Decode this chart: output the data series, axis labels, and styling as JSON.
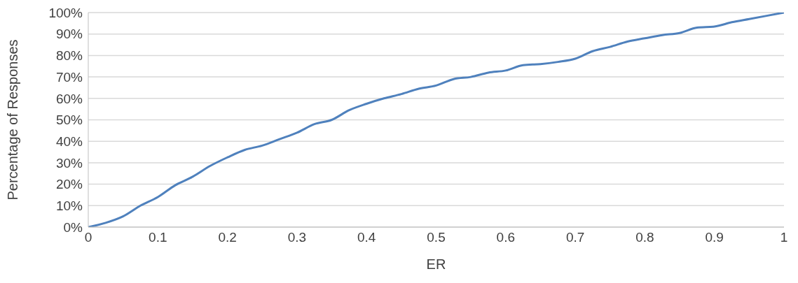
{
  "chart_data": {
    "type": "line",
    "xlabel": "ER",
    "ylabel": "Percentage of Responses",
    "x": [
      0,
      0.025,
      0.05,
      0.075,
      0.1,
      0.125,
      0.15,
      0.175,
      0.2,
      0.225,
      0.25,
      0.275,
      0.3,
      0.325,
      0.35,
      0.375,
      0.4,
      0.425,
      0.45,
      0.475,
      0.5,
      0.525,
      0.55,
      0.575,
      0.6,
      0.625,
      0.65,
      0.675,
      0.7,
      0.725,
      0.75,
      0.775,
      0.8,
      0.825,
      0.85,
      0.875,
      0.9,
      0.925,
      0.95,
      0.975,
      1
    ],
    "series": [
      {
        "color": "#4f81bd",
        "values": [
          0,
          2,
          5,
          10,
          14,
          19.5,
          23.5,
          28.5,
          32.5,
          36,
          38,
          41,
          44,
          48,
          50,
          54.5,
          57.5,
          60,
          62,
          64.5,
          66,
          69,
          70,
          72,
          73,
          75.5,
          76,
          77,
          78.5,
          82,
          84,
          86.5,
          88,
          89.5,
          90.5,
          93,
          93.5,
          95.5,
          97,
          98.5,
          100
        ]
      }
    ],
    "xlim": [
      0,
      1
    ],
    "xticks": [
      0,
      0.1,
      0.2,
      0.3,
      0.4,
      0.5,
      0.6,
      0.7,
      0.8,
      0.9,
      1
    ],
    "ylim": [
      0,
      100
    ],
    "yticks": [
      {
        "value": 0,
        "label": "0%"
      },
      {
        "value": 10,
        "label": "10%"
      },
      {
        "value": 20,
        "label": "20%"
      },
      {
        "value": 30,
        "label": "30%"
      },
      {
        "value": 40,
        "label": "40%"
      },
      {
        "value": 50,
        "label": "50%"
      },
      {
        "value": 60,
        "label": "60%"
      },
      {
        "value": 70,
        "label": "70%"
      },
      {
        "value": 80,
        "label": "80%"
      },
      {
        "value": 90,
        "label": "90%"
      },
      {
        "value": 100,
        "label": "100%"
      }
    ],
    "grid": "y",
    "marker": "none",
    "line_style": "solid"
  }
}
